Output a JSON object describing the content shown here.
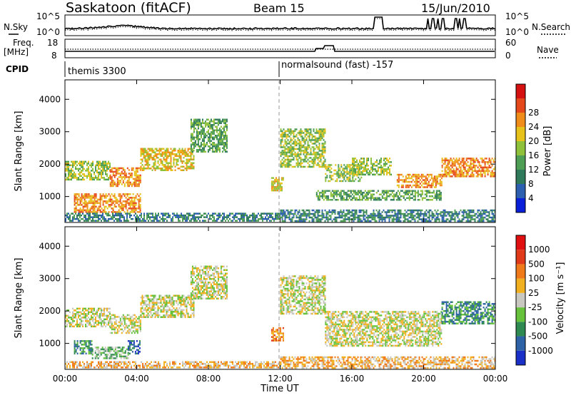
{
  "header": {
    "title": "Saskatoon (fitACF)",
    "beam": "Beam 15",
    "date": "15/Jun/2010"
  },
  "param_labels": {
    "nsky": "N.Sky",
    "nsearch": "N.Search",
    "freq_line1": "Freq.",
    "freq_line2": "[MHz]",
    "nave": "Nave",
    "cpid": "CPID",
    "noise_tick_top": "10^5",
    "noise_tick_bottom": "10^0",
    "freq_tick_top": "18",
    "freq_tick_bottom": "8",
    "nave_tick_top": "60",
    "nave_tick_bottom": "0"
  },
  "cpid_labels": [
    "themis 3300",
    "normalsound (fast) -157"
  ],
  "axes": {
    "ylabel": "Slant Range [km]",
    "xlabel": "Time UT",
    "x_ticks": [
      "00:00",
      "04:00",
      "08:00",
      "12:00",
      "16:00",
      "20:00",
      "00:00"
    ],
    "y_ticks": [
      "1000",
      "2000",
      "3000",
      "4000"
    ],
    "ylim": [
      200,
      4600
    ],
    "xlim_hours": [
      0,
      24
    ]
  },
  "power_colorbar": {
    "label": "Power [dB]",
    "ticks": [
      "4",
      "8",
      "12",
      "16",
      "20",
      "24",
      "28"
    ],
    "colors": [
      "#0a1fd8",
      "#2d5fb0",
      "#2f7a5a",
      "#4f9e55",
      "#8fc23a",
      "#e6c21a",
      "#f08c1a",
      "#e5481a",
      "#d41010"
    ]
  },
  "velocity_colorbar": {
    "label": "Velocity [m s⁻¹]",
    "ticks": [
      "1000",
      "500",
      "100",
      "25",
      "-25",
      "-100",
      "-500",
      "-1000"
    ],
    "colors": [
      "#1a2fc8",
      "#2e62a6",
      "#2f8a52",
      "#66c23a",
      "#c8c8c0",
      "#f0b020",
      "#f07a1a",
      "#e03a1a",
      "#e01010"
    ]
  },
  "chart_data": [
    {
      "type": "heatmap",
      "title": "Power",
      "xlabel": "Time UT",
      "ylabel": "Slant Range [km]",
      "x_unit": "hours UT",
      "ylim": [
        200,
        4600
      ],
      "bands": [
        {
          "t0": 0.0,
          "t1": 2.5,
          "r0": 1500,
          "r1": 2100,
          "level": 4
        },
        {
          "t0": 2.5,
          "t1": 4.2,
          "r0": 1300,
          "r1": 1900,
          "level": 6
        },
        {
          "t0": 4.2,
          "t1": 7.2,
          "r0": 1800,
          "r1": 2500,
          "level": 5
        },
        {
          "t0": 7.0,
          "t1": 9.0,
          "r0": 2400,
          "r1": 3400,
          "level": 3
        },
        {
          "t0": 0.5,
          "t1": 4.2,
          "r0": 500,
          "r1": 1100,
          "level": 6
        },
        {
          "t0": 0.0,
          "t1": 12.0,
          "r0": 250,
          "r1": 500,
          "level": 2
        },
        {
          "t0": 12.0,
          "t1": 14.5,
          "r0": 1900,
          "r1": 3100,
          "level": 4
        },
        {
          "t0": 14.5,
          "t1": 16.5,
          "r0": 1500,
          "r1": 2000,
          "level": 4
        },
        {
          "t0": 16.0,
          "t1": 18.2,
          "r0": 1700,
          "r1": 2200,
          "level": 4
        },
        {
          "t0": 18.5,
          "t1": 21.0,
          "r0": 1300,
          "r1": 1700,
          "level": 6
        },
        {
          "t0": 21.0,
          "t1": 24.0,
          "r0": 1600,
          "r1": 2200,
          "level": 6
        },
        {
          "t0": 14.0,
          "t1": 21.0,
          "r0": 900,
          "r1": 1200,
          "level": 3
        },
        {
          "t0": 12.0,
          "t1": 24.0,
          "r0": 250,
          "r1": 600,
          "level": 2
        },
        {
          "t0": 11.5,
          "t1": 12.2,
          "r0": 1200,
          "r1": 1600,
          "level": 5
        }
      ]
    },
    {
      "type": "heatmap",
      "title": "Velocity",
      "xlabel": "Time UT",
      "ylabel": "Slant Range [km]",
      "x_unit": "hours UT",
      "ylim": [
        200,
        4600
      ],
      "bands": [
        {
          "t0": 0.0,
          "t1": 2.5,
          "r0": 1500,
          "r1": 2100,
          "level": 4
        },
        {
          "t0": 2.5,
          "t1": 4.2,
          "r0": 1300,
          "r1": 1900,
          "level": 4
        },
        {
          "t0": 4.2,
          "t1": 7.2,
          "r0": 1800,
          "r1": 2500,
          "level": 4
        },
        {
          "t0": 7.0,
          "t1": 9.0,
          "r0": 2400,
          "r1": 3400,
          "level": 4
        },
        {
          "t0": 0.5,
          "t1": 1.5,
          "r0": 700,
          "r1": 1100,
          "level": 2
        },
        {
          "t0": 1.5,
          "t1": 3.5,
          "r0": 550,
          "r1": 900,
          "level": 3
        },
        {
          "t0": 3.5,
          "t1": 4.2,
          "r0": 700,
          "r1": 1100,
          "level": 1
        },
        {
          "t0": 0.0,
          "t1": 12.0,
          "r0": 250,
          "r1": 450,
          "level": 5
        },
        {
          "t0": 11.5,
          "t1": 12.2,
          "r0": 1100,
          "r1": 1500,
          "level": 6
        },
        {
          "t0": 12.0,
          "t1": 24.0,
          "r0": 250,
          "r1": 600,
          "level": 5
        },
        {
          "t0": 12.0,
          "t1": 14.5,
          "r0": 1900,
          "r1": 3100,
          "level": 4
        },
        {
          "t0": 14.5,
          "t1": 21.0,
          "r0": 900,
          "r1": 2000,
          "level": 4
        },
        {
          "t0": 21.0,
          "t1": 24.0,
          "r0": 1600,
          "r1": 2300,
          "level": 2
        }
      ]
    }
  ]
}
